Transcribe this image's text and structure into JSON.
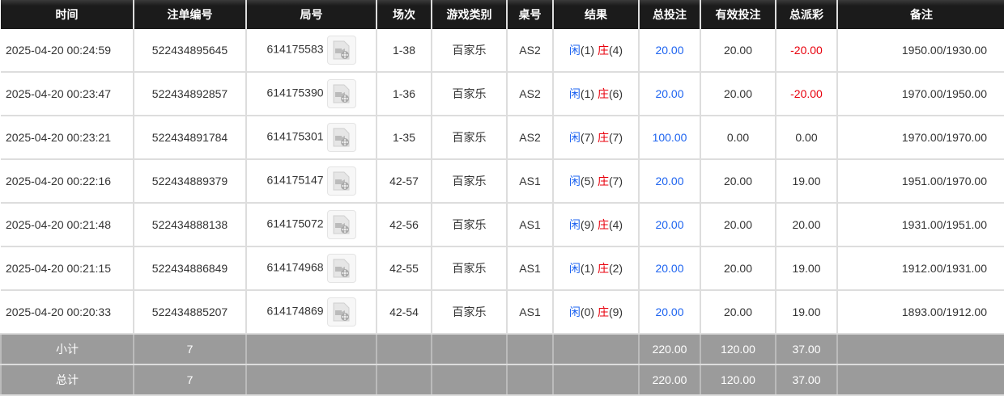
{
  "headers": [
    "时间",
    "注单编号",
    "局号",
    "场次",
    "游戏类别",
    "桌号",
    "结果",
    "总投注",
    "有效投注",
    "总派彩",
    "备注"
  ],
  "rows": [
    {
      "time": "2025-04-20 00:24:59",
      "bet_id": "522434895645",
      "round": "614175583",
      "shoe": "1-38",
      "game": "百家乐",
      "table": "AS2",
      "player_label": "闲",
      "player": "(1)",
      "banker_label": "庄",
      "banker": "(4)",
      "total": "20.00",
      "valid": "20.00",
      "payout": "-20.00",
      "payout_neg": true,
      "note": "1950.00/1930.00"
    },
    {
      "time": "2025-04-20 00:23:47",
      "bet_id": "522434892857",
      "round": "614175390",
      "shoe": "1-36",
      "game": "百家乐",
      "table": "AS2",
      "player_label": "闲",
      "player": "(1)",
      "banker_label": "庄",
      "banker": "(6)",
      "total": "20.00",
      "valid": "20.00",
      "payout": "-20.00",
      "payout_neg": true,
      "note": "1970.00/1950.00"
    },
    {
      "time": "2025-04-20 00:23:21",
      "bet_id": "522434891784",
      "round": "614175301",
      "shoe": "1-35",
      "game": "百家乐",
      "table": "AS2",
      "player_label": "闲",
      "player": "(7)",
      "banker_label": "庄",
      "banker": "(7)",
      "total": "100.00",
      "valid": "0.00",
      "payout": "0.00",
      "payout_neg": false,
      "note": "1970.00/1970.00"
    },
    {
      "time": "2025-04-20 00:22:16",
      "bet_id": "522434889379",
      "round": "614175147",
      "shoe": "42-57",
      "game": "百家乐",
      "table": "AS1",
      "player_label": "闲",
      "player": "(5)",
      "banker_label": "庄",
      "banker": "(7)",
      "total": "20.00",
      "valid": "20.00",
      "payout": "19.00",
      "payout_neg": false,
      "note": "1951.00/1970.00"
    },
    {
      "time": "2025-04-20 00:21:48",
      "bet_id": "522434888138",
      "round": "614175072",
      "shoe": "42-56",
      "game": "百家乐",
      "table": "AS1",
      "player_label": "闲",
      "player": "(9)",
      "banker_label": "庄",
      "banker": "(4)",
      "total": "20.00",
      "valid": "20.00",
      "payout": "20.00",
      "payout_neg": false,
      "note": "1931.00/1951.00"
    },
    {
      "time": "2025-04-20 00:21:15",
      "bet_id": "522434886849",
      "round": "614174968",
      "shoe": "42-55",
      "game": "百家乐",
      "table": "AS1",
      "player_label": "闲",
      "player": "(1)",
      "banker_label": "庄",
      "banker": "(2)",
      "total": "20.00",
      "valid": "20.00",
      "payout": "19.00",
      "payout_neg": false,
      "note": "1912.00/1931.00"
    },
    {
      "time": "2025-04-20 00:20:33",
      "bet_id": "522434885207",
      "round": "614174869",
      "shoe": "42-54",
      "game": "百家乐",
      "table": "AS1",
      "player_label": "闲",
      "player": "(0)",
      "banker_label": "庄",
      "banker": "(9)",
      "total": "20.00",
      "valid": "20.00",
      "payout": "19.00",
      "payout_neg": false,
      "note": "1893.00/1912.00"
    }
  ],
  "summary": [
    {
      "label": "小计",
      "count": "7",
      "total": "220.00",
      "valid": "120.00",
      "payout": "37.00"
    },
    {
      "label": "总计",
      "count": "7",
      "total": "220.00",
      "valid": "120.00",
      "payout": "37.00"
    }
  ],
  "colors": {
    "blue": "#1e64f0",
    "red": "#e8000c",
    "header_bg": "#1b1b1b",
    "summary_bg": "#9b9b9b"
  },
  "icons": {
    "video": "video-replay-icon"
  }
}
